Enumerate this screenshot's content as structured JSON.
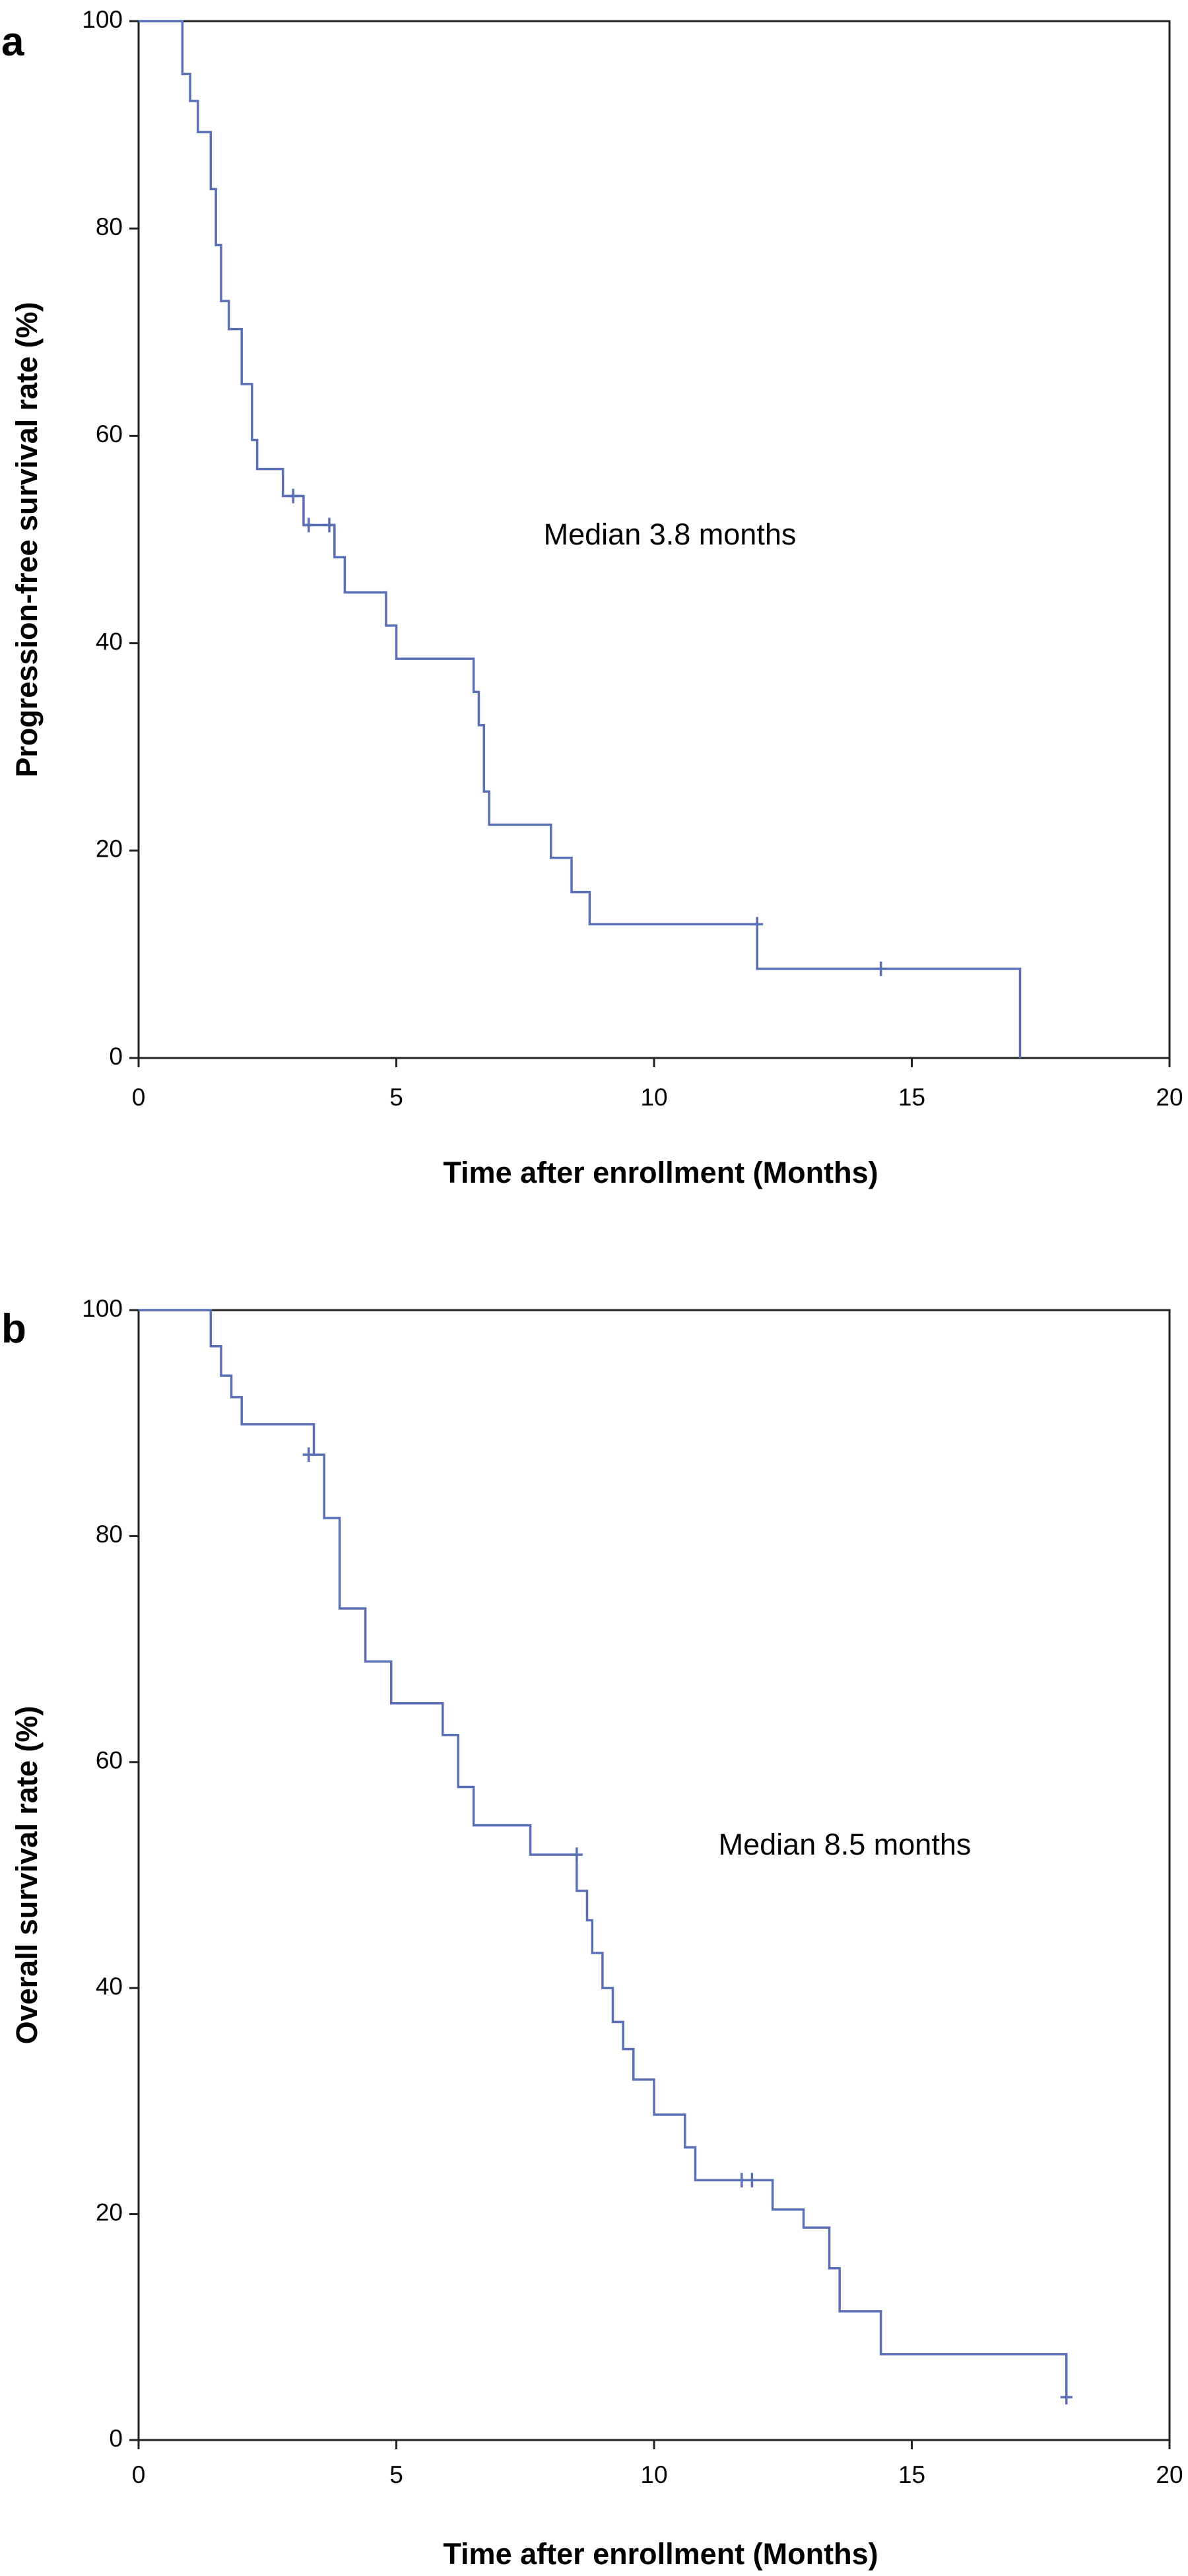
{
  "chart_data": [
    {
      "panel": "a",
      "type": "line",
      "step": true,
      "xlabel": "Time after enrollment (Months)",
      "ylabel": "Progression-free survival rate (%)",
      "xlim": [
        0,
        20
      ],
      "ylim": [
        0,
        100
      ],
      "xticks": [
        0,
        5,
        10,
        15,
        20
      ],
      "yticks": [
        0,
        20,
        40,
        60,
        80,
        100
      ],
      "annotation": "Median 3.8 months",
      "color": "#5a6fb5",
      "x": [
        0,
        0.85,
        1.0,
        1.15,
        1.4,
        1.5,
        1.6,
        1.75,
        2.0,
        2.2,
        2.3,
        2.8,
        3.2,
        3.5,
        3.8,
        4.0,
        4.8,
        5.0,
        6.5,
        6.6,
        6.7,
        6.8,
        8.0,
        8.4,
        8.75,
        12.0,
        17.1,
        17.1
      ],
      "y": [
        100,
        94.9,
        92.3,
        89.3,
        83.8,
        78.4,
        73.0,
        70.3,
        65.0,
        59.6,
        56.8,
        54.2,
        51.4,
        51.4,
        48.3,
        44.9,
        41.7,
        38.5,
        35.3,
        32.1,
        25.7,
        22.5,
        19.3,
        16.0,
        12.9,
        8.6,
        8.6,
        0
      ],
      "censored": [
        {
          "x": 3.0,
          "y": 54.2
        },
        {
          "x": 3.3,
          "y": 51.4
        },
        {
          "x": 3.7,
          "y": 51.4
        },
        {
          "x": 12.0,
          "y": 12.9
        },
        {
          "x": 14.4,
          "y": 8.6
        }
      ]
    },
    {
      "panel": "b",
      "type": "line",
      "step": true,
      "xlabel": "Time after enrollment (Months)",
      "ylabel": "Overall survival rate (%)",
      "xlim": [
        0,
        20
      ],
      "ylim": [
        0,
        100
      ],
      "xticks": [
        0,
        5,
        10,
        15,
        20
      ],
      "yticks": [
        0,
        20,
        40,
        60,
        80,
        100
      ],
      "annotation": "Median 8.5 months",
      "color": "#5a6fb5",
      "x": [
        0,
        1.4,
        1.6,
        1.8,
        2.0,
        3.4,
        3.6,
        3.9,
        4.4,
        4.9,
        5.9,
        6.2,
        6.5,
        7.6,
        8.5,
        8.7,
        8.8,
        9.0,
        9.2,
        9.4,
        9.6,
        10.0,
        10.6,
        10.8,
        12.3,
        12.9,
        13.4,
        13.6,
        14.4,
        18.0
      ],
      "y": [
        100,
        96.8,
        94.2,
        92.3,
        89.9,
        87.2,
        81.6,
        73.6,
        68.9,
        65.2,
        62.4,
        57.8,
        54.4,
        51.8,
        48.6,
        46.0,
        43.1,
        40.0,
        37.0,
        34.6,
        31.9,
        28.8,
        25.9,
        23.0,
        20.4,
        18.8,
        15.2,
        11.4,
        7.6,
        3.8
      ],
      "censored": [
        {
          "x": 3.3,
          "y": 87.2
        },
        {
          "x": 8.5,
          "y": 51.8
        },
        {
          "x": 11.7,
          "y": 23.0
        },
        {
          "x": 11.9,
          "y": 23.0
        },
        {
          "x": 18.0,
          "y": 3.8
        }
      ]
    }
  ]
}
